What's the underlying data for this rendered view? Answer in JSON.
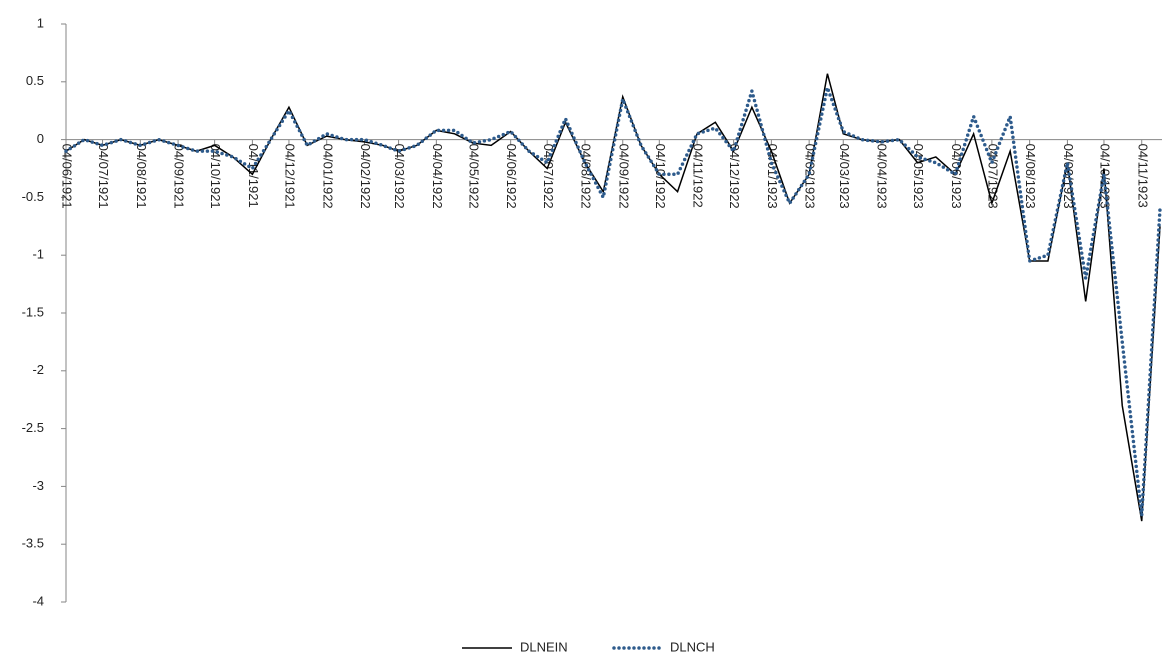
{
  "chart_data": {
    "type": "line",
    "x": [
      "04/06/1921",
      "19/06/1921",
      "04/07/1921",
      "19/07/1921",
      "04/08/1921",
      "19/08/1921",
      "04/09/1921",
      "19/09/1921",
      "04/10/1921",
      "19/10/1921",
      "04/11/1921",
      "19/11/1921",
      "04/12/1921",
      "19/12/1921",
      "04/01/1922",
      "19/01/1922",
      "04/02/1922",
      "19/02/1922",
      "04/03/1922",
      "19/03/1922",
      "04/04/1922",
      "19/04/1922",
      "04/05/1922",
      "19/05/1922",
      "04/06/1922",
      "19/06/1922",
      "04/07/1922",
      "19/07/1922",
      "04/08/1922",
      "19/08/1922",
      "04/09/1922",
      "19/09/1922",
      "04/10/1922",
      "19/10/1922",
      "04/11/1922",
      "19/11/1922",
      "04/12/1922",
      "19/12/1922",
      "04/01/1923",
      "19/01/1923",
      "04/02/1923",
      "19/02/1923",
      "04/03/1923",
      "19/03/1923",
      "04/04/1923",
      "19/04/1923",
      "04/05/1923",
      "19/05/1923",
      "04/06/1923",
      "19/06/1923",
      "04/07/1923",
      "19/07/1923",
      "04/08/1923",
      "19/08/1923",
      "04/09/1923",
      "19/09/1923",
      "04/10/1923",
      "19/10/1923",
      "04/11/1923",
      "19/11/1923"
    ],
    "series": [
      {
        "name": "DLNEIN",
        "color": "#000000",
        "style": "solid",
        "values": [
          -0.1,
          0,
          -0.05,
          0,
          -0.05,
          0,
          -0.05,
          -0.1,
          -0.05,
          -0.15,
          -0.3,
          0,
          0.28,
          -0.05,
          0.03,
          0,
          -0.02,
          -0.05,
          -0.1,
          -0.05,
          0.08,
          0.05,
          -0.03,
          -0.05,
          0.07,
          -0.1,
          -0.25,
          0.15,
          -0.2,
          -0.45,
          0.37,
          -0.05,
          -0.3,
          -0.45,
          0.05,
          0.15,
          -0.1,
          0.28,
          -0.1,
          -0.55,
          -0.3,
          0.57,
          0.05,
          0,
          -0.02,
          0,
          -0.2,
          -0.15,
          -0.3,
          0.05,
          -0.55,
          -0.1,
          -1.05,
          -1.05,
          -0.2,
          -1.4,
          -0.25,
          -2.3,
          -3.3,
          -0.75
        ]
      },
      {
        "name": "DLNCH",
        "color": "#2e5b8c",
        "style": "dotted",
        "values": [
          -0.1,
          0,
          -0.05,
          0,
          -0.05,
          0,
          -0.05,
          -0.1,
          -0.1,
          -0.15,
          -0.25,
          0,
          0.25,
          -0.05,
          0.05,
          0,
          0,
          -0.05,
          -0.1,
          -0.05,
          0.08,
          0.08,
          -0.03,
          0,
          0.07,
          -0.1,
          -0.2,
          0.18,
          -0.2,
          -0.5,
          0.35,
          -0.05,
          -0.3,
          -0.3,
          0.05,
          0.1,
          -0.1,
          0.42,
          -0.2,
          -0.55,
          -0.3,
          0.45,
          0.07,
          0,
          -0.02,
          0,
          -0.15,
          -0.2,
          -0.3,
          0.2,
          -0.2,
          0.2,
          -1.05,
          -1.0,
          -0.2,
          -1.2,
          -0.3,
          -1.75,
          -3.25,
          -0.6
        ]
      }
    ],
    "xlim": [
      "04/06/1921",
      "19/11/1923"
    ],
    "xticks": [
      "04/06/1921",
      "04/07/1921",
      "04/08/1921",
      "04/09/1921",
      "04/10/1921",
      "04/11/1921",
      "04/12/1921",
      "04/01/1922",
      "04/02/1922",
      "04/03/1922",
      "04/04/1922",
      "04/05/1922",
      "04/06/1922",
      "04/07/1922",
      "04/08/1922",
      "04/09/1922",
      "04/10/1922",
      "04/11/1922",
      "04/12/1922",
      "04/01/1923",
      "04/02/1923",
      "04/03/1923",
      "04/04/1923",
      "04/05/1923",
      "04/06/1923",
      "04/07/1923",
      "04/08/1923",
      "04/09/1923",
      "04/10/1923",
      "04/11/1923"
    ],
    "ylim": [
      -4,
      1
    ],
    "yticks": [
      -4,
      -3.5,
      -3,
      -2.5,
      -2,
      -1.5,
      -1,
      -0.5,
      0,
      0.5,
      1
    ],
    "grid": false,
    "legend": "bottom"
  }
}
